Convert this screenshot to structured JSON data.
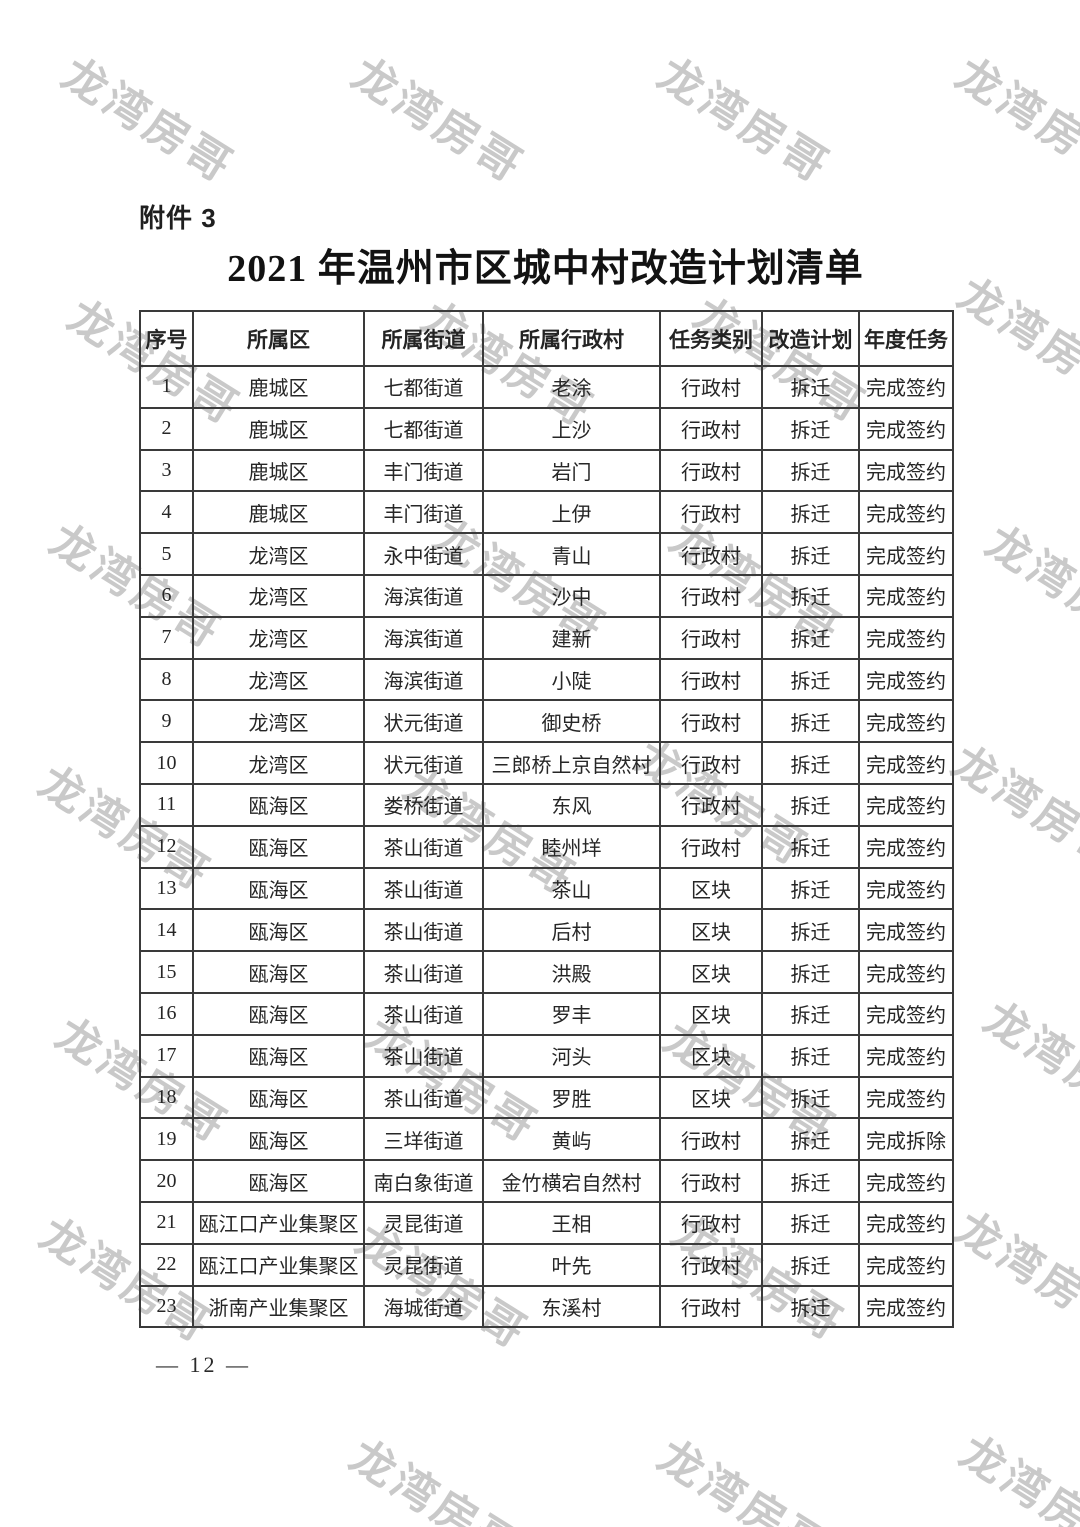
{
  "document": {
    "attachment_label": "附件 3",
    "title": "2021 年温州市区城中村改造计划清单",
    "page_number": "— 12 —",
    "watermark_text": "龙湾房哥"
  },
  "table": {
    "columns": [
      "序号",
      "所属区",
      "所属街道",
      "所属行政村",
      "任务类别",
      "改造计划",
      "年度任务"
    ],
    "rows": [
      [
        "1",
        "鹿城区",
        "七都街道",
        "老涂",
        "行政村",
        "拆迁",
        "完成签约"
      ],
      [
        "2",
        "鹿城区",
        "七都街道",
        "上沙",
        "行政村",
        "拆迁",
        "完成签约"
      ],
      [
        "3",
        "鹿城区",
        "丰门街道",
        "岩门",
        "行政村",
        "拆迁",
        "完成签约"
      ],
      [
        "4",
        "鹿城区",
        "丰门街道",
        "上伊",
        "行政村",
        "拆迁",
        "完成签约"
      ],
      [
        "5",
        "龙湾区",
        "永中街道",
        "青山",
        "行政村",
        "拆迁",
        "完成签约"
      ],
      [
        "6",
        "龙湾区",
        "海滨街道",
        "沙中",
        "行政村",
        "拆迁",
        "完成签约"
      ],
      [
        "7",
        "龙湾区",
        "海滨街道",
        "建新",
        "行政村",
        "拆迁",
        "完成签约"
      ],
      [
        "8",
        "龙湾区",
        "海滨街道",
        "小陡",
        "行政村",
        "拆迁",
        "完成签约"
      ],
      [
        "9",
        "龙湾区",
        "状元街道",
        "御史桥",
        "行政村",
        "拆迁",
        "完成签约"
      ],
      [
        "10",
        "龙湾区",
        "状元街道",
        "三郎桥上京自然村",
        "行政村",
        "拆迁",
        "完成签约"
      ],
      [
        "11",
        "瓯海区",
        "娄桥街道",
        "东风",
        "行政村",
        "拆迁",
        "完成签约"
      ],
      [
        "12",
        "瓯海区",
        "茶山街道",
        "睦州垟",
        "行政村",
        "拆迁",
        "完成签约"
      ],
      [
        "13",
        "瓯海区",
        "茶山街道",
        "茶山",
        "区块",
        "拆迁",
        "完成签约"
      ],
      [
        "14",
        "瓯海区",
        "茶山街道",
        "后村",
        "区块",
        "拆迁",
        "完成签约"
      ],
      [
        "15",
        "瓯海区",
        "茶山街道",
        "洪殿",
        "区块",
        "拆迁",
        "完成签约"
      ],
      [
        "16",
        "瓯海区",
        "茶山街道",
        "罗丰",
        "区块",
        "拆迁",
        "完成签约"
      ],
      [
        "17",
        "瓯海区",
        "茶山街道",
        "河头",
        "区块",
        "拆迁",
        "完成签约"
      ],
      [
        "18",
        "瓯海区",
        "茶山街道",
        "罗胜",
        "区块",
        "拆迁",
        "完成签约"
      ],
      [
        "19",
        "瓯海区",
        "三垟街道",
        "黄屿",
        "行政村",
        "拆迁",
        "完成拆除"
      ],
      [
        "20",
        "瓯海区",
        "南白象街道",
        "金竹横宕自然村",
        "行政村",
        "拆迁",
        "完成签约"
      ],
      [
        "21",
        "瓯江口产业集聚区",
        "灵昆街道",
        "王相",
        "行政村",
        "拆迁",
        "完成签约"
      ],
      [
        "22",
        "瓯江口产业集聚区",
        "灵昆街道",
        "叶先",
        "行政村",
        "拆迁",
        "完成签约"
      ],
      [
        "23",
        "浙南产业集聚区",
        "海城街道",
        "东溪村",
        "行政村",
        "拆迁",
        "完成签约"
      ]
    ]
  },
  "colors": {
    "background": "#ffffff",
    "border": "#3a3a3a",
    "text": "#262626",
    "watermark": "#c4c4c4"
  }
}
